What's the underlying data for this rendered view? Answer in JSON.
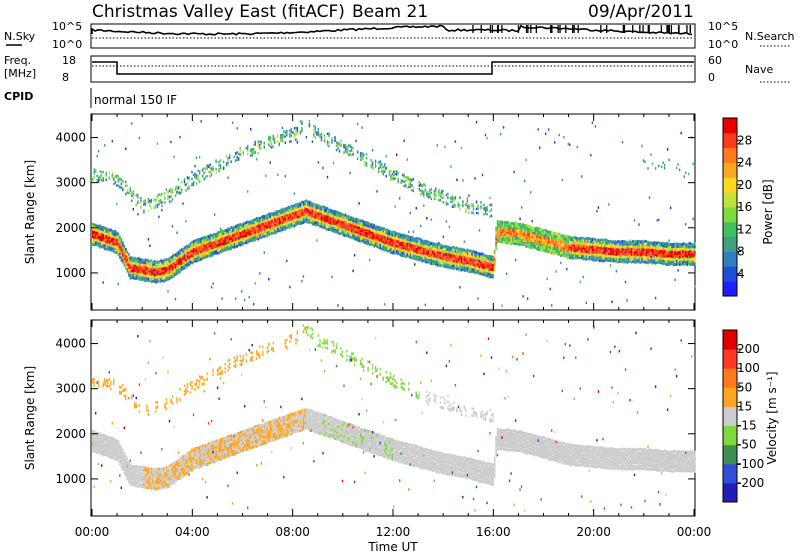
{
  "header": {
    "title": "Christmas Valley East (fitACF)",
    "beam": "Beam 21",
    "date": "09/Apr/2011"
  },
  "top_panels": {
    "nsky_label": "N.Sky",
    "nsky_ticks": [
      "10^5",
      "10^0"
    ],
    "nsearch_label": "N.Search",
    "nsearch_ticks": [
      "10^5",
      "10^0"
    ],
    "freq_label_1": "Freq.",
    "freq_label_2": "[MHz]",
    "freq_ticks": [
      "18",
      "8"
    ],
    "nave_label": "Nave",
    "nave_ticks": [
      "60",
      "0"
    ],
    "cpid_label": "CPID",
    "cpid_text": "normal 150 IF"
  },
  "chart_data": [
    {
      "type": "heatmap",
      "title": "",
      "xlabel": "",
      "ylabel": "Slant Range [km]",
      "x_ticks": [
        "00:00",
        "04:00",
        "08:00",
        "12:00",
        "16:00",
        "20:00",
        "00:00"
      ],
      "y_ticks": [
        1000,
        2000,
        3000,
        4000
      ],
      "ylim": [
        200,
        4500
      ],
      "xlim_hours": [
        0,
        24
      ],
      "colorbar": {
        "label": "Power [dB]",
        "ticks": [
          "28",
          "24",
          "20",
          "16",
          "12",
          "8",
          "4"
        ],
        "colors": [
          "#1f1fff",
          "#1f4fd8",
          "#2f7fbf",
          "#3f9f7f",
          "#3fbf5f",
          "#7fd83f",
          "#bfe23f",
          "#ffd71f",
          "#ffa51f",
          "#ff7a1f",
          "#ff3a1f",
          "#e80000"
        ]
      },
      "bands": [
        {
          "name": "main",
          "points": [
            [
              0,
              1900
            ],
            [
              0.5,
              1800
            ],
            [
              1,
              1700
            ],
            [
              1.5,
              1150
            ],
            [
              2,
              1100
            ],
            [
              2.5,
              1050
            ],
            [
              3,
              1100
            ],
            [
              3.5,
              1300
            ],
            [
              4,
              1500
            ],
            [
              5,
              1700
            ],
            [
              6,
              1900
            ],
            [
              7,
              2100
            ],
            [
              8,
              2300
            ],
            [
              8.5,
              2400
            ],
            [
              9,
              2300
            ],
            [
              10,
              2100
            ],
            [
              11,
              1900
            ],
            [
              12,
              1700
            ],
            [
              13,
              1550
            ],
            [
              14,
              1400
            ],
            [
              15,
              1300
            ],
            [
              16,
              1150
            ],
            [
              16.1,
              1950
            ],
            [
              17,
              1900
            ],
            [
              18,
              1750
            ],
            [
              19,
              1600
            ],
            [
              20,
              1550
            ],
            [
              21,
              1500
            ],
            [
              22,
              1500
            ],
            [
              23,
              1450
            ],
            [
              24,
              1450
            ]
          ]
        },
        {
          "name": "upper",
          "points": [
            [
              0,
              3200
            ],
            [
              1,
              3100
            ],
            [
              2,
              2500
            ],
            [
              3,
              2700
            ],
            [
              4,
              3100
            ],
            [
              5,
              3400
            ],
            [
              6,
              3700
            ],
            [
              7,
              3900
            ],
            [
              8,
              4100
            ],
            [
              8.5,
              4350
            ],
            [
              9,
              4100
            ],
            [
              10,
              3800
            ],
            [
              11,
              3500
            ],
            [
              12,
              3200
            ],
            [
              13,
              2900
            ],
            [
              14,
              2700
            ],
            [
              15,
              2500
            ],
            [
              16,
              2400
            ]
          ]
        },
        {
          "name": "top-right",
          "points": [
            [
              22,
              3500
            ],
            [
              23,
              3400
            ],
            [
              24,
              3300
            ]
          ]
        }
      ]
    },
    {
      "type": "heatmap",
      "title": "",
      "xlabel": "Time UT",
      "ylabel": "Slant Range [km]",
      "x_ticks": [
        "00:00",
        "04:00",
        "08:00",
        "12:00",
        "16:00",
        "20:00",
        "00:00"
      ],
      "y_ticks": [
        1000,
        2000,
        3000,
        4000
      ],
      "ylim": [
        200,
        4500
      ],
      "xlim_hours": [
        0,
        24
      ],
      "colorbar": {
        "label": "Velocity [m s⁻¹]",
        "ticks": [
          "200",
          "100",
          "50",
          "15",
          "-15",
          "-50",
          "-100",
          "-200"
        ],
        "colors": [
          "#1f1fb8",
          "#2f4fd8",
          "#3f8f4f",
          "#7fd83f",
          "#cccccc",
          "#ffa51f",
          "#ff7a1f",
          "#ff3a1f",
          "#e00000"
        ]
      }
    }
  ],
  "colors": {
    "grey_scatter": "#c9c9c0",
    "orange_scatter": "#ffb02f",
    "green_scatter": "#7fd03f"
  }
}
